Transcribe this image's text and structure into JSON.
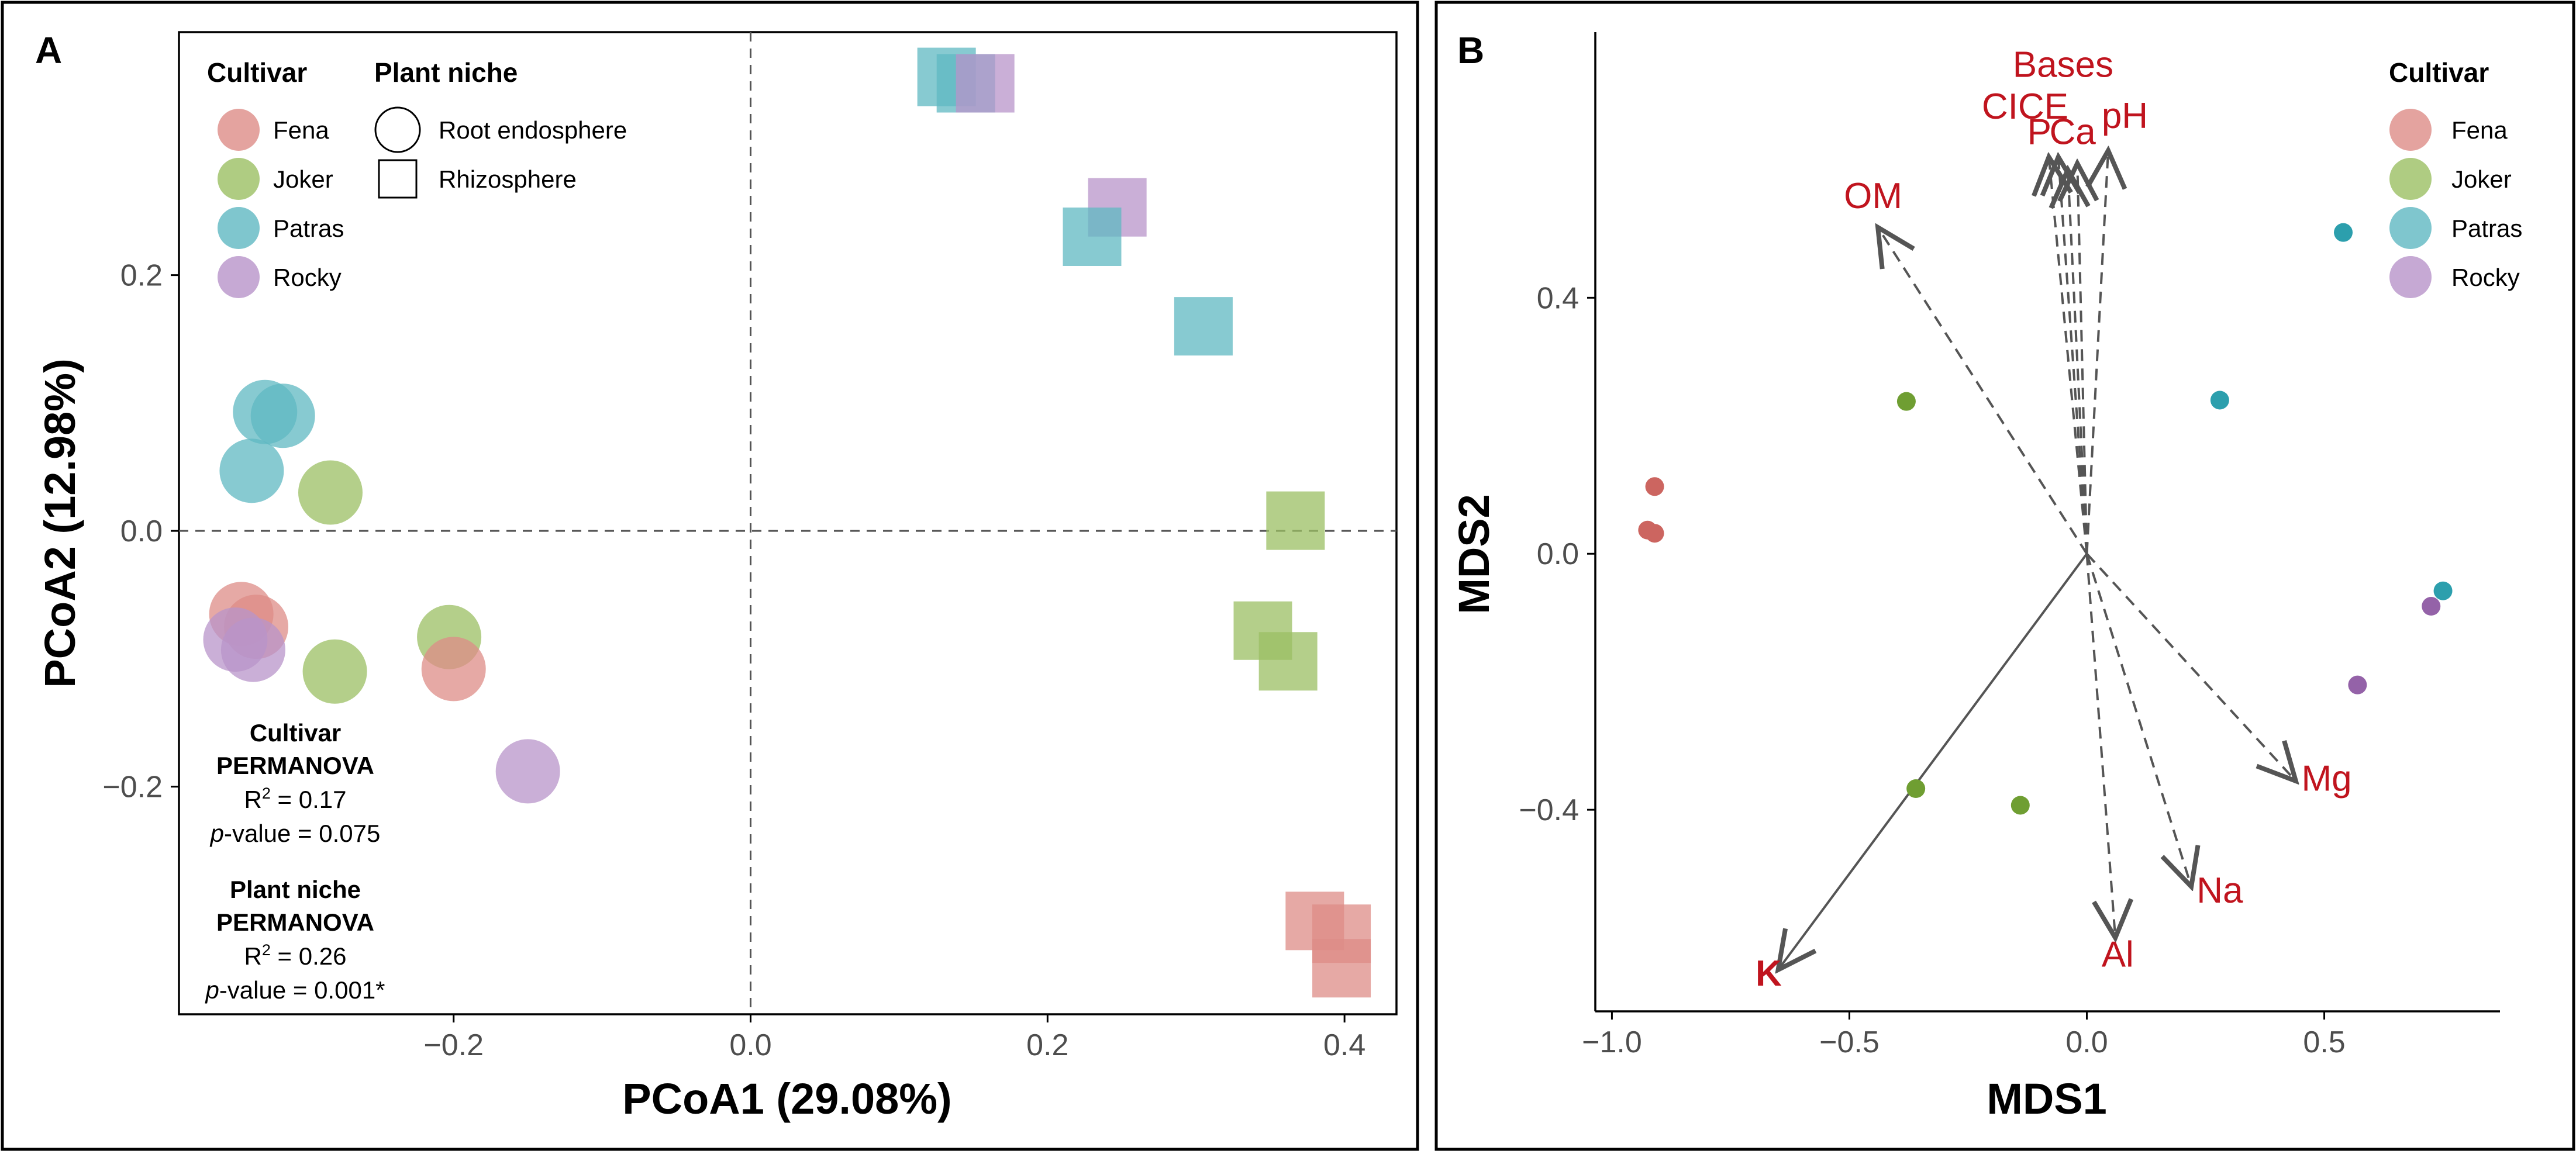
{
  "panels": {
    "a_letter": "A",
    "b_letter": "B"
  },
  "colors": {
    "Fena": "#dd8c87",
    "Joker": "#9bbf63",
    "Patras": "#5fb8c2",
    "Rocky": "#b894c9",
    "Fena_dot": "#cc6560",
    "Joker_dot": "#6f9e32",
    "Patras_dot": "#2c9fad",
    "Rocky_dot": "#9462a8",
    "vector_label": "#c0141e",
    "vector_line": "#555555"
  },
  "chart_data": [
    {
      "type": "scatter",
      "panel": "A",
      "xlabel": "PCoA1 (29.08%)",
      "ylabel": "PCoA2 (12.98%)",
      "xlim": [
        -0.385,
        0.435
      ],
      "ylim": [
        -0.378,
        0.39
      ],
      "x_ticks": [
        -0.2,
        0.0,
        0.2,
        0.4
      ],
      "x_tick_labels": [
        "−0.2",
        "0.0",
        "0.2",
        "0.4"
      ],
      "y_ticks": [
        -0.2,
        0.0,
        0.2
      ],
      "y_tick_labels": [
        "−0.2",
        "0.0",
        "0.2"
      ],
      "reference_lines": {
        "x": 0,
        "y": 0,
        "style": "dashed"
      },
      "legend": {
        "cultivar_title": "Cultivar",
        "cultivars": [
          "Fena",
          "Joker",
          "Patras",
          "Rocky"
        ],
        "niche_title": "Plant niche",
        "niches": [
          "Root endosphere",
          "Rhizosphere"
        ],
        "placement": "top-left"
      },
      "annotations": {
        "cultivar_title1": "Cultivar",
        "cultivar_title2": "PERMANOVA",
        "cultivar_r2_prefix": "R",
        "cultivar_r2_suffix": " = 0.17",
        "cultivar_p_italic": "p",
        "cultivar_p_rest": "-value = 0.075",
        "niche_title1": "Plant niche",
        "niche_title2": "PERMANOVA",
        "niche_r2_prefix": "R",
        "niche_r2_suffix": " = 0.26",
        "niche_p_italic": "p",
        "niche_p_rest": "-value = 0.001*",
        "superscript": "2"
      },
      "points": [
        {
          "x": -0.327,
          "y": 0.093,
          "cultivar": "Patras",
          "niche": "Root endosphere"
        },
        {
          "x": -0.315,
          "y": 0.09,
          "cultivar": "Patras",
          "niche": "Root endosphere"
        },
        {
          "x": -0.336,
          "y": 0.047,
          "cultivar": "Patras",
          "niche": "Root endosphere"
        },
        {
          "x": -0.283,
          "y": 0.03,
          "cultivar": "Joker",
          "niche": "Root endosphere"
        },
        {
          "x": -0.343,
          "y": -0.065,
          "cultivar": "Fena",
          "niche": "Root endosphere"
        },
        {
          "x": -0.333,
          "y": -0.075,
          "cultivar": "Fena",
          "niche": "Root endosphere"
        },
        {
          "x": -0.347,
          "y": -0.085,
          "cultivar": "Rocky",
          "niche": "Root endosphere"
        },
        {
          "x": -0.335,
          "y": -0.093,
          "cultivar": "Rocky",
          "niche": "Root endosphere"
        },
        {
          "x": -0.28,
          "y": -0.11,
          "cultivar": "Joker",
          "niche": "Root endosphere"
        },
        {
          "x": -0.203,
          "y": -0.083,
          "cultivar": "Joker",
          "niche": "Root endosphere"
        },
        {
          "x": -0.2,
          "y": -0.108,
          "cultivar": "Fena",
          "niche": "Root endosphere"
        },
        {
          "x": -0.15,
          "y": -0.188,
          "cultivar": "Rocky",
          "niche": "Root endosphere"
        },
        {
          "x": 0.132,
          "y": 0.355,
          "cultivar": "Patras",
          "niche": "Rhizosphere"
        },
        {
          "x": 0.145,
          "y": 0.35,
          "cultivar": "Patras",
          "niche": "Rhizosphere"
        },
        {
          "x": 0.158,
          "y": 0.35,
          "cultivar": "Rocky",
          "niche": "Rhizosphere"
        },
        {
          "x": 0.247,
          "y": 0.253,
          "cultivar": "Rocky",
          "niche": "Rhizosphere"
        },
        {
          "x": 0.23,
          "y": 0.23,
          "cultivar": "Patras",
          "niche": "Rhizosphere"
        },
        {
          "x": 0.305,
          "y": 0.16,
          "cultivar": "Patras",
          "niche": "Rhizosphere"
        },
        {
          "x": 0.367,
          "y": 0.008,
          "cultivar": "Joker",
          "niche": "Rhizosphere"
        },
        {
          "x": 0.345,
          "y": -0.078,
          "cultivar": "Joker",
          "niche": "Rhizosphere"
        },
        {
          "x": 0.362,
          "y": -0.102,
          "cultivar": "Joker",
          "niche": "Rhizosphere"
        },
        {
          "x": 0.38,
          "y": -0.305,
          "cultivar": "Fena",
          "niche": "Rhizosphere"
        },
        {
          "x": 0.398,
          "y": -0.315,
          "cultivar": "Fena",
          "niche": "Rhizosphere"
        },
        {
          "x": 0.398,
          "y": -0.342,
          "cultivar": "Fena",
          "niche": "Rhizosphere"
        }
      ]
    },
    {
      "type": "scatter",
      "panel": "B",
      "xlabel": "MDS1",
      "ylabel": "MDS2",
      "xlim": [
        -1.035,
        0.87
      ],
      "ylim": [
        -0.715,
        0.815
      ],
      "x_ticks": [
        -1.0,
        -0.5,
        0.0,
        0.5
      ],
      "x_tick_labels": [
        "−1.0",
        "−0.5",
        "0.0",
        "0.5"
      ],
      "y_ticks": [
        -0.4,
        0.0,
        0.4
      ],
      "y_tick_labels": [
        "−0.4",
        "0.0",
        "0.4"
      ],
      "legend": {
        "title": "Cultivar",
        "entries": [
          "Fena",
          "Joker",
          "Patras",
          "Rocky"
        ],
        "placement": "top-right"
      },
      "points": [
        {
          "x": -0.91,
          "y": 0.105,
          "cultivar": "Fena"
        },
        {
          "x": -0.925,
          "y": 0.037,
          "cultivar": "Fena"
        },
        {
          "x": -0.91,
          "y": 0.032,
          "cultivar": "Fena"
        },
        {
          "x": -0.38,
          "y": 0.238,
          "cultivar": "Joker"
        },
        {
          "x": -0.36,
          "y": -0.367,
          "cultivar": "Joker"
        },
        {
          "x": -0.14,
          "y": -0.393,
          "cultivar": "Joker"
        },
        {
          "x": 0.54,
          "y": 0.502,
          "cultivar": "Patras"
        },
        {
          "x": 0.28,
          "y": 0.24,
          "cultivar": "Patras"
        },
        {
          "x": 0.75,
          "y": -0.058,
          "cultivar": "Patras"
        },
        {
          "x": 0.725,
          "y": -0.082,
          "cultivar": "Rocky"
        },
        {
          "x": 0.57,
          "y": -0.205,
          "cultivar": "Rocky"
        }
      ],
      "vectors": [
        {
          "name": "Bases",
          "x": -0.06,
          "y": 0.62,
          "significant": false,
          "label_x": -0.05,
          "label_y": 0.745
        },
        {
          "name": "CICE",
          "x": -0.08,
          "y": 0.62,
          "significant": false,
          "label_x": -0.13,
          "label_y": 0.68
        },
        {
          "name": "P",
          "x": -0.04,
          "y": 0.6,
          "significant": false,
          "label_x": -0.1,
          "label_y": 0.64
        },
        {
          "name": "Ca",
          "x": -0.02,
          "y": 0.61,
          "significant": false,
          "label_x": -0.03,
          "label_y": 0.64
        },
        {
          "name": "pH",
          "x": 0.045,
          "y": 0.63,
          "significant": false,
          "label_x": 0.08,
          "label_y": 0.665
        },
        {
          "name": "OM",
          "x": -0.44,
          "y": 0.51,
          "significant": false,
          "label_x": -0.45,
          "label_y": 0.54
        },
        {
          "name": "Mg",
          "x": 0.44,
          "y": -0.355,
          "significant": false,
          "label_x": 0.505,
          "label_y": -0.37
        },
        {
          "name": "Na",
          "x": 0.22,
          "y": -0.52,
          "significant": false,
          "label_x": 0.28,
          "label_y": -0.545
        },
        {
          "name": "Al",
          "x": 0.06,
          "y": -0.6,
          "significant": false,
          "label_x": 0.065,
          "label_y": -0.645
        },
        {
          "name": "K",
          "x": -0.65,
          "y": -0.65,
          "significant": true,
          "label_x": -0.67,
          "label_y": -0.675
        }
      ]
    }
  ]
}
